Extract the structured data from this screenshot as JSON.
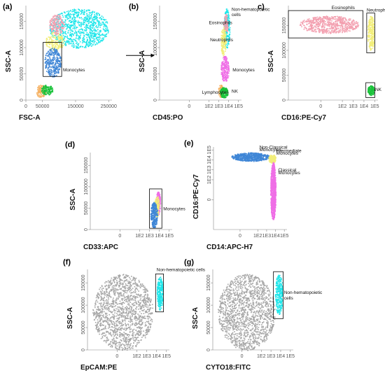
{
  "colors": {
    "cyan": "#1ee6ea",
    "pink": "#f3a0b0",
    "yellow": "#f2ee7a",
    "blue": "#3f86d6",
    "green": "#19c23a",
    "orange": "#f5b060",
    "magenta": "#ef6ee6",
    "gray": "#a6a6a6"
  },
  "chart_data": [
    {
      "id": "a",
      "letter": "(a)",
      "type": "scatter",
      "xlabel": "FSC-A",
      "ylabel": "SSC-A",
      "xscale": "linear",
      "yscale": "linear",
      "xlim": [
        0,
        260000
      ],
      "ylim": [
        0,
        180000
      ],
      "xticks": [
        {
          "v": 0,
          "label": "0"
        },
        {
          "v": 50000,
          "label": "50000"
        },
        {
          "v": 150000,
          "label": "150000"
        },
        {
          "v": 250000,
          "label": "250000"
        }
      ],
      "yticks": [
        {
          "v": 0,
          "label": "0"
        },
        {
          "v": 50000,
          "label": "50000"
        },
        {
          "v": 100000,
          "label": "100000"
        },
        {
          "v": 150000,
          "label": "150000"
        }
      ],
      "populations": [
        {
          "color": "cyan",
          "x": [
            70000,
            250000
          ],
          "y": [
            100000,
            175000
          ],
          "n": 900
        },
        {
          "color": "yellow",
          "x": [
            58000,
            115000
          ],
          "y": [
            95000,
            130000
          ],
          "n": 180
        },
        {
          "color": "pink",
          "x": [
            70000,
            115000
          ],
          "y": [
            125000,
            165000
          ],
          "n": 180
        },
        {
          "color": "blue",
          "x": [
            55000,
            105000
          ],
          "y": [
            45000,
            100000
          ],
          "n": 320
        },
        {
          "color": "orange",
          "x": [
            30000,
            60000
          ],
          "y": [
            5000,
            30000
          ],
          "n": 110
        },
        {
          "color": "green",
          "x": [
            45000,
            80000
          ],
          "y": [
            10000,
            30000
          ],
          "n": 120
        }
      ],
      "gates": [
        {
          "x": [
            52000,
            108000
          ],
          "y": [
            45000,
            110000
          ],
          "label": "Monocytes",
          "lx": 112000,
          "ly": 55000
        }
      ],
      "arrow": true
    },
    {
      "id": "b",
      "letter": "(b)",
      "type": "scatter",
      "xlabel": "CD45:PO",
      "ylabel": "SSC-A",
      "xscale": "log",
      "yscale": "linear",
      "xlim": [
        -30,
        200000
      ],
      "ylim": [
        0,
        180000
      ],
      "xticks": [
        {
          "v": 0,
          "label": "0"
        },
        {
          "v": 100,
          "label": "1E2"
        },
        {
          "v": 1000,
          "label": "1E3"
        },
        {
          "v": 10000,
          "label": "1E4"
        },
        {
          "v": 100000,
          "label": "1E5"
        }
      ],
      "yticks": [
        {
          "v": 0,
          "label": "0"
        },
        {
          "v": 50000,
          "label": "50000"
        },
        {
          "v": 100000,
          "label": "100000"
        },
        {
          "v": 150000,
          "label": "150000"
        }
      ],
      "populations": [
        {
          "color": "cyan",
          "x": [
            3000,
            12000
          ],
          "y": [
            100000,
            175000
          ],
          "n": 220
        },
        {
          "color": "pink",
          "x": [
            3000,
            8000
          ],
          "y": [
            128000,
            165000
          ],
          "n": 90
        },
        {
          "color": "yellow",
          "x": [
            1500,
            5000
          ],
          "y": [
            85000,
            140000
          ],
          "n": 170
        },
        {
          "color": "magenta",
          "x": [
            1500,
            10000
          ],
          "y": [
            35000,
            85000
          ],
          "n": 230
        },
        {
          "color": "orange",
          "x": [
            800,
            2500
          ],
          "y": [
            5000,
            30000
          ],
          "n": 70
        },
        {
          "color": "green",
          "x": [
            1200,
            8000
          ],
          "y": [
            5000,
            25000
          ],
          "n": 170
        }
      ],
      "gates": [],
      "annotations": [
        {
          "text": "Non-hematopoietic",
          "x": 20000,
          "y": 170000
        },
        {
          "text": "cells",
          "x": 20000,
          "y": 160000
        },
        {
          "text": "Eosinophils",
          "x": 100,
          "y": 145000
        },
        {
          "text": "Neutrophils",
          "x": 130,
          "y": 112000
        },
        {
          "text": "Monocytes",
          "x": 25000,
          "y": 55000
        },
        {
          "text": "Lymphocytes",
          "x": 20,
          "y": 12000
        },
        {
          "text": "NK",
          "x": 20000,
          "y": 14000
        }
      ]
    },
    {
      "id": "c",
      "letter": "c)",
      "type": "scatter",
      "xlabel": "CD16:PE-Cy7",
      "ylabel": "SSC-A",
      "xscale": "log",
      "yscale": "linear",
      "xlim": [
        -30,
        200000
      ],
      "ylim": [
        0,
        190000
      ],
      "xticks": [
        {
          "v": 0,
          "label": "0"
        },
        {
          "v": 100,
          "label": "1E2"
        },
        {
          "v": 1000,
          "label": "1E3"
        },
        {
          "v": 10000,
          "label": "1E4"
        },
        {
          "v": 100000,
          "label": "1E5"
        }
      ],
      "yticks": [
        {
          "v": 0,
          "label": "0"
        },
        {
          "v": 50000,
          "label": "50000"
        },
        {
          "v": 100000,
          "label": "100000"
        },
        {
          "v": 150000,
          "label": "150000"
        }
      ],
      "populations": [
        {
          "color": "pink",
          "x": [
            -20,
            3000
          ],
          "y": [
            135000,
            170000
          ],
          "n": 650
        },
        {
          "color": "yellow",
          "x": [
            20000,
            90000
          ],
          "y": [
            100000,
            170000
          ],
          "n": 260
        },
        {
          "color": "green",
          "x": [
            20000,
            90000
          ],
          "y": [
            10000,
            30000
          ],
          "n": 150
        }
      ],
      "gates": [
        {
          "x": [
            -30,
            8000
          ],
          "y": [
            125000,
            180000
          ],
          "label": "Eosinophils",
          "lx": 10,
          "ly": 183000
        },
        {
          "x": [
            18000,
            100000
          ],
          "y": [
            95000,
            175000
          ],
          "label": "Neutrophils",
          "lx": 18000,
          "ly": 178000
        },
        {
          "x": [
            15000,
            100000
          ],
          "y": [
            5000,
            35000
          ],
          "label": "NK",
          "lx": 110000,
          "ly": 18000
        }
      ]
    },
    {
      "id": "d",
      "letter": "(d)",
      "type": "scatter",
      "xlabel": "CD33:APC",
      "ylabel": "SSC-A",
      "xscale": "log",
      "yscale": "linear",
      "xlim": [
        -30,
        200000
      ],
      "ylim": [
        0,
        180000
      ],
      "xticks": [
        {
          "v": 0,
          "label": "0"
        },
        {
          "v": 100,
          "label": "1E2"
        },
        {
          "v": 1000,
          "label": "1E3"
        },
        {
          "v": 10000,
          "label": "1E4"
        },
        {
          "v": 100000,
          "label": "1E5"
        }
      ],
      "yticks": [
        {
          "v": 0,
          "label": "0"
        },
        {
          "v": 50000,
          "label": "50000"
        },
        {
          "v": 100000,
          "label": "100000"
        },
        {
          "v": 150000,
          "label": "150000"
        }
      ],
      "populations": [
        {
          "color": "magenta",
          "x": [
            4000,
            12000
          ],
          "y": [
            35000,
            90000
          ],
          "n": 180
        },
        {
          "color": "yellow",
          "x": [
            3000,
            9000
          ],
          "y": [
            30000,
            80000
          ],
          "n": 160
        },
        {
          "color": "blue",
          "x": [
            1200,
            6000
          ],
          "y": [
            5000,
            65000
          ],
          "n": 300
        }
      ],
      "gates": [
        {
          "x": [
            1000,
            18000
          ],
          "y": [
            3000,
            95000
          ],
          "label": "Monocytes",
          "lx": 25000,
          "ly": 45000
        }
      ]
    },
    {
      "id": "e",
      "letter": "(e)",
      "type": "scatter",
      "xlabel": "CD14:APC-H7",
      "ylabel": "CD16:PE-Cy7",
      "xscale": "log",
      "yscale": "log",
      "xlim": [
        -30,
        200000
      ],
      "ylim": [
        -30,
        200000
      ],
      "xticks": [
        {
          "v": 0,
          "label": "0"
        },
        {
          "v": 100,
          "label": "1E2"
        },
        {
          "v": 1000,
          "label": "1E3"
        },
        {
          "v": 10000,
          "label": "1E4"
        },
        {
          "v": 100000,
          "label": "1E5"
        }
      ],
      "yticks": [
        {
          "v": 0,
          "label": "0"
        },
        {
          "v": 100,
          "label": "1E2"
        },
        {
          "v": 1000,
          "label": "1E3"
        },
        {
          "v": 10000,
          "label": "1E4"
        },
        {
          "v": 100000,
          "label": "1E5"
        }
      ],
      "populations": [
        {
          "color": "blue",
          "x": [
            -10,
            2000
          ],
          "y": [
            8000,
            60000
          ],
          "n": 600
        },
        {
          "color": "yellow",
          "x": [
            1500,
            10000
          ],
          "y": [
            5000,
            40000
          ],
          "n": 170
        },
        {
          "color": "magenta",
          "x": [
            2500,
            10000
          ],
          "y": [
            -20,
            6000
          ],
          "n": 900
        }
      ],
      "gates": [],
      "annotations": [
        {
          "text": "Non-Classical",
          "x": 150,
          "y": 130000
        },
        {
          "text": "Monocytes",
          "x": 150,
          "y": 75000
        },
        {
          "text": "Intermediate",
          "x": 12000,
          "y": 60000
        },
        {
          "text": "Monocytes",
          "x": 12000,
          "y": 35000
        },
        {
          "text": "Classical",
          "x": 20000,
          "y": 700
        },
        {
          "text": "Monocytes",
          "x": 20000,
          "y": 350
        }
      ]
    },
    {
      "id": "f",
      "letter": "(f)",
      "type": "scatter",
      "xlabel": "EpCAM:PE",
      "ylabel": "SSC-A",
      "xscale": "log",
      "yscale": "linear",
      "xlim": [
        -30,
        200000
      ],
      "ylim": [
        0,
        180000
      ],
      "xticks": [
        {
          "v": 0,
          "label": "0"
        },
        {
          "v": 100,
          "label": "1E2"
        },
        {
          "v": 1000,
          "label": "1E3"
        },
        {
          "v": 10000,
          "label": "1E4"
        },
        {
          "v": 100000,
          "label": "1E5"
        }
      ],
      "yticks": [
        {
          "v": 0,
          "label": "0"
        },
        {
          "v": 50000,
          "label": "50000"
        },
        {
          "v": 100000,
          "label": "100000"
        },
        {
          "v": 150000,
          "label": "150000"
        }
      ],
      "populations": [
        {
          "color": "gray",
          "x": [
            -25,
            4000
          ],
          "y": [
            0,
            170000
          ],
          "n": 1500
        },
        {
          "color": "cyan",
          "x": [
            10000,
            40000
          ],
          "y": [
            90000,
            165000
          ],
          "n": 260
        }
      ],
      "gates": [
        {
          "x": [
            8000,
            50000
          ],
          "y": [
            85000,
            170000
          ],
          "label": "Non-hematopoietic cells",
          "lx": 10000,
          "ly": 176000
        }
      ]
    },
    {
      "id": "g",
      "letter": "(g)",
      "type": "scatter",
      "xlabel": "CYTO18:FITC",
      "ylabel": "SSC-A",
      "xscale": "log",
      "yscale": "linear",
      "xlim": [
        -30,
        200000
      ],
      "ylim": [
        0,
        180000
      ],
      "xticks": [
        {
          "v": 0,
          "label": "0"
        },
        {
          "v": 100,
          "label": "1E2"
        },
        {
          "v": 1000,
          "label": "1E3"
        },
        {
          "v": 10000,
          "label": "1E4"
        },
        {
          "v": 100000,
          "label": "1E5"
        }
      ],
      "yticks": [
        {
          "v": 0,
          "label": "0"
        },
        {
          "v": 50000,
          "label": "50000"
        },
        {
          "v": 100000,
          "label": "100000"
        },
        {
          "v": 150000,
          "label": "150000"
        }
      ],
      "populations": [
        {
          "color": "gray",
          "x": [
            -25,
            2500
          ],
          "y": [
            0,
            170000
          ],
          "n": 1500
        },
        {
          "color": "cyan",
          "x": [
            2500,
            15000
          ],
          "y": [
            80000,
            170000
          ],
          "n": 280
        }
      ],
      "gates": [
        {
          "x": [
            1800,
            18000
          ],
          "y": [
            70000,
            175000
          ],
          "label": "",
          "lx": 0,
          "ly": 0
        }
      ],
      "annotations": [
        {
          "text": "Non-hematopoietic",
          "x": 22000,
          "y": 125000
        },
        {
          "text": "cells",
          "x": 22000,
          "y": 113000
        }
      ]
    }
  ]
}
